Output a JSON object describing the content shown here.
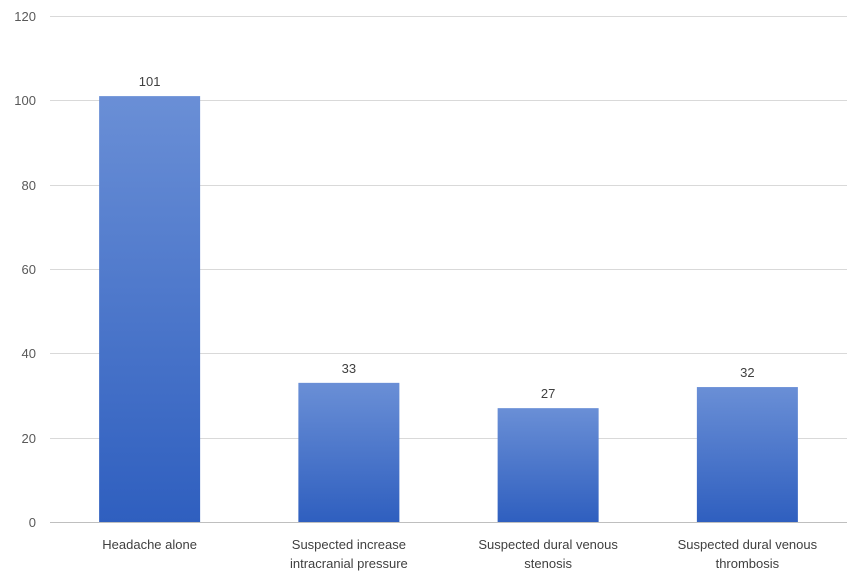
{
  "chart_data": {
    "type": "bar",
    "categories": [
      "Headache alone",
      "Suspected increase intracranial pressure",
      "Suspected dural venous stenosis",
      "Suspected dural venous thrombosis"
    ],
    "category_lines": [
      [
        "Headache alone"
      ],
      [
        "Suspected increase",
        "intracranial pressure"
      ],
      [
        "Suspected dural venous",
        "stenosis"
      ],
      [
        "Suspected dural venous",
        "thrombosis"
      ]
    ],
    "values": [
      101,
      33,
      27,
      32
    ],
    "data_labels": [
      "101",
      "33",
      "27",
      "32"
    ],
    "title": "",
    "xlabel": "",
    "ylabel": "",
    "ylim": [
      0,
      120
    ],
    "yticks": [
      0,
      20,
      40,
      60,
      80,
      100,
      120
    ],
    "grid": true,
    "legend": "none",
    "bar_color_top": "#6a8fd6",
    "bar_color_bottom": "#2f5fbf"
  }
}
